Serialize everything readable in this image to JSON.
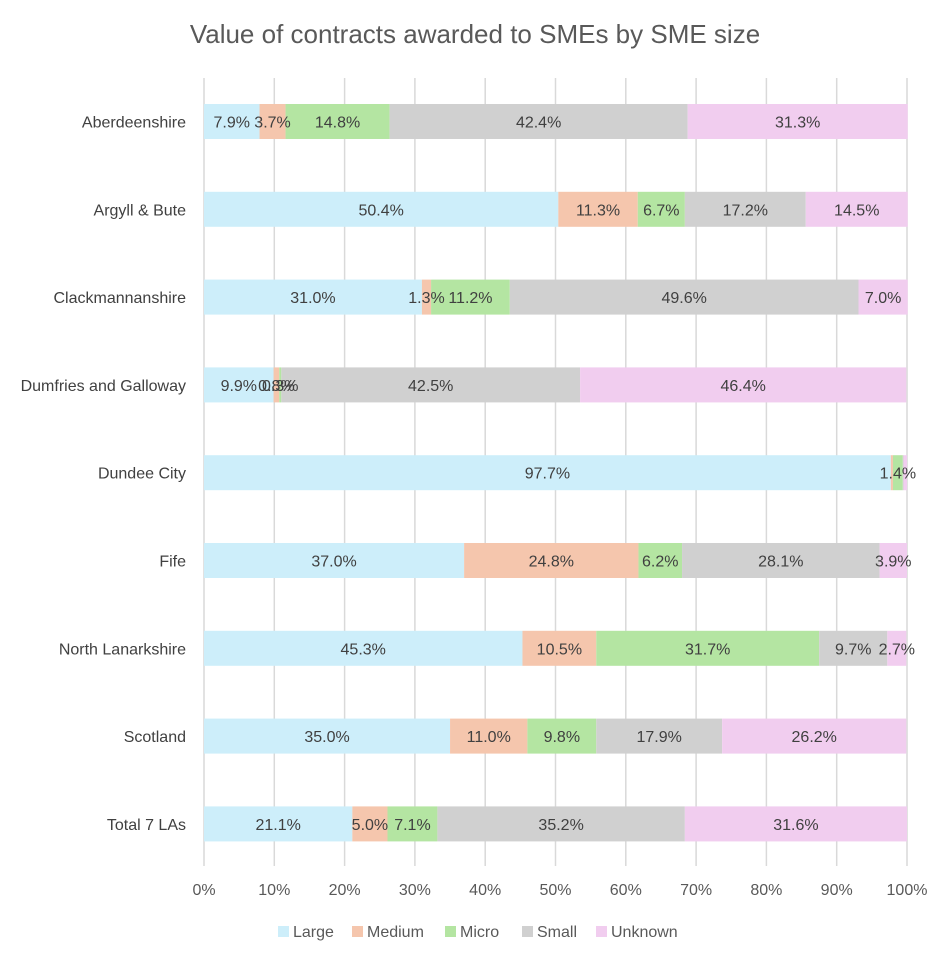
{
  "chart_data": {
    "type": "bar",
    "orientation": "horizontal",
    "stacked": true,
    "percent": true,
    "title": "Value of contracts awarded to SMEs by SME size",
    "xlabel": "",
    "ylabel": "",
    "xlim": [
      0,
      100
    ],
    "x_ticks": [
      "0%",
      "10%",
      "20%",
      "30%",
      "40%",
      "50%",
      "60%",
      "70%",
      "80%",
      "90%",
      "100%"
    ],
    "grid": true,
    "legend_position": "bottom",
    "categories": [
      "Aberdeenshire",
      "Argyll & Bute",
      "Clackmannanshire",
      "Dumfries and Galloway",
      "Dundee City",
      "Fife",
      "North Lanarkshire",
      "Scotland",
      "Total 7 LAs"
    ],
    "series": [
      {
        "name": "Large",
        "color": "#cdeefa",
        "values": [
          7.9,
          50.4,
          31.0,
          9.9,
          97.7,
          37.0,
          45.3,
          35.0,
          21.1
        ]
      },
      {
        "name": "Medium",
        "color": "#f5c6ad",
        "values": [
          3.7,
          11.3,
          1.3,
          0.8,
          0.3,
          24.8,
          10.5,
          11.0,
          5.0
        ]
      },
      {
        "name": "Micro",
        "color": "#b4e5a2",
        "values": [
          14.8,
          6.7,
          11.2,
          0.3,
          1.4,
          6.2,
          31.7,
          9.8,
          7.1
        ]
      },
      {
        "name": "Small",
        "color": "#d0d0d0",
        "values": [
          42.4,
          17.2,
          49.6,
          42.5,
          0.1,
          28.1,
          9.7,
          17.9,
          35.2
        ]
      },
      {
        "name": "Unknown",
        "color": "#f1cdef",
        "values": [
          31.3,
          14.5,
          7.0,
          46.4,
          0.5,
          3.9,
          2.7,
          26.2,
          31.6
        ]
      }
    ],
    "data_labels": [
      [
        "7.9%",
        "3.7%",
        "14.8%",
        "42.4%",
        "31.3%"
      ],
      [
        "50.4%",
        "11.3%",
        "6.7%",
        "17.2%",
        "14.5%"
      ],
      [
        "31.0%",
        "1.3%",
        "11.2%",
        "49.6%",
        "7.0%"
      ],
      [
        "9.9%",
        "0.8%",
        "0.3%",
        "42.5%",
        "46.4%"
      ],
      [
        "97.7%",
        "",
        "1.4%",
        "",
        ""
      ],
      [
        "37.0%",
        "24.8%",
        "6.2%",
        "28.1%",
        "3.9%"
      ],
      [
        "45.3%",
        "10.5%",
        "31.7%",
        "9.7%",
        "2.7%"
      ],
      [
        "35.0%",
        "11.0%",
        "9.8%",
        "17.9%",
        "26.2%"
      ],
      [
        "21.1%",
        "5.0%",
        "7.1%",
        "35.2%",
        "31.6%"
      ]
    ],
    "styles": {
      "text_color": "#404040",
      "axis_text_color": "#595959",
      "grid_color": "#d9d9d9"
    }
  }
}
